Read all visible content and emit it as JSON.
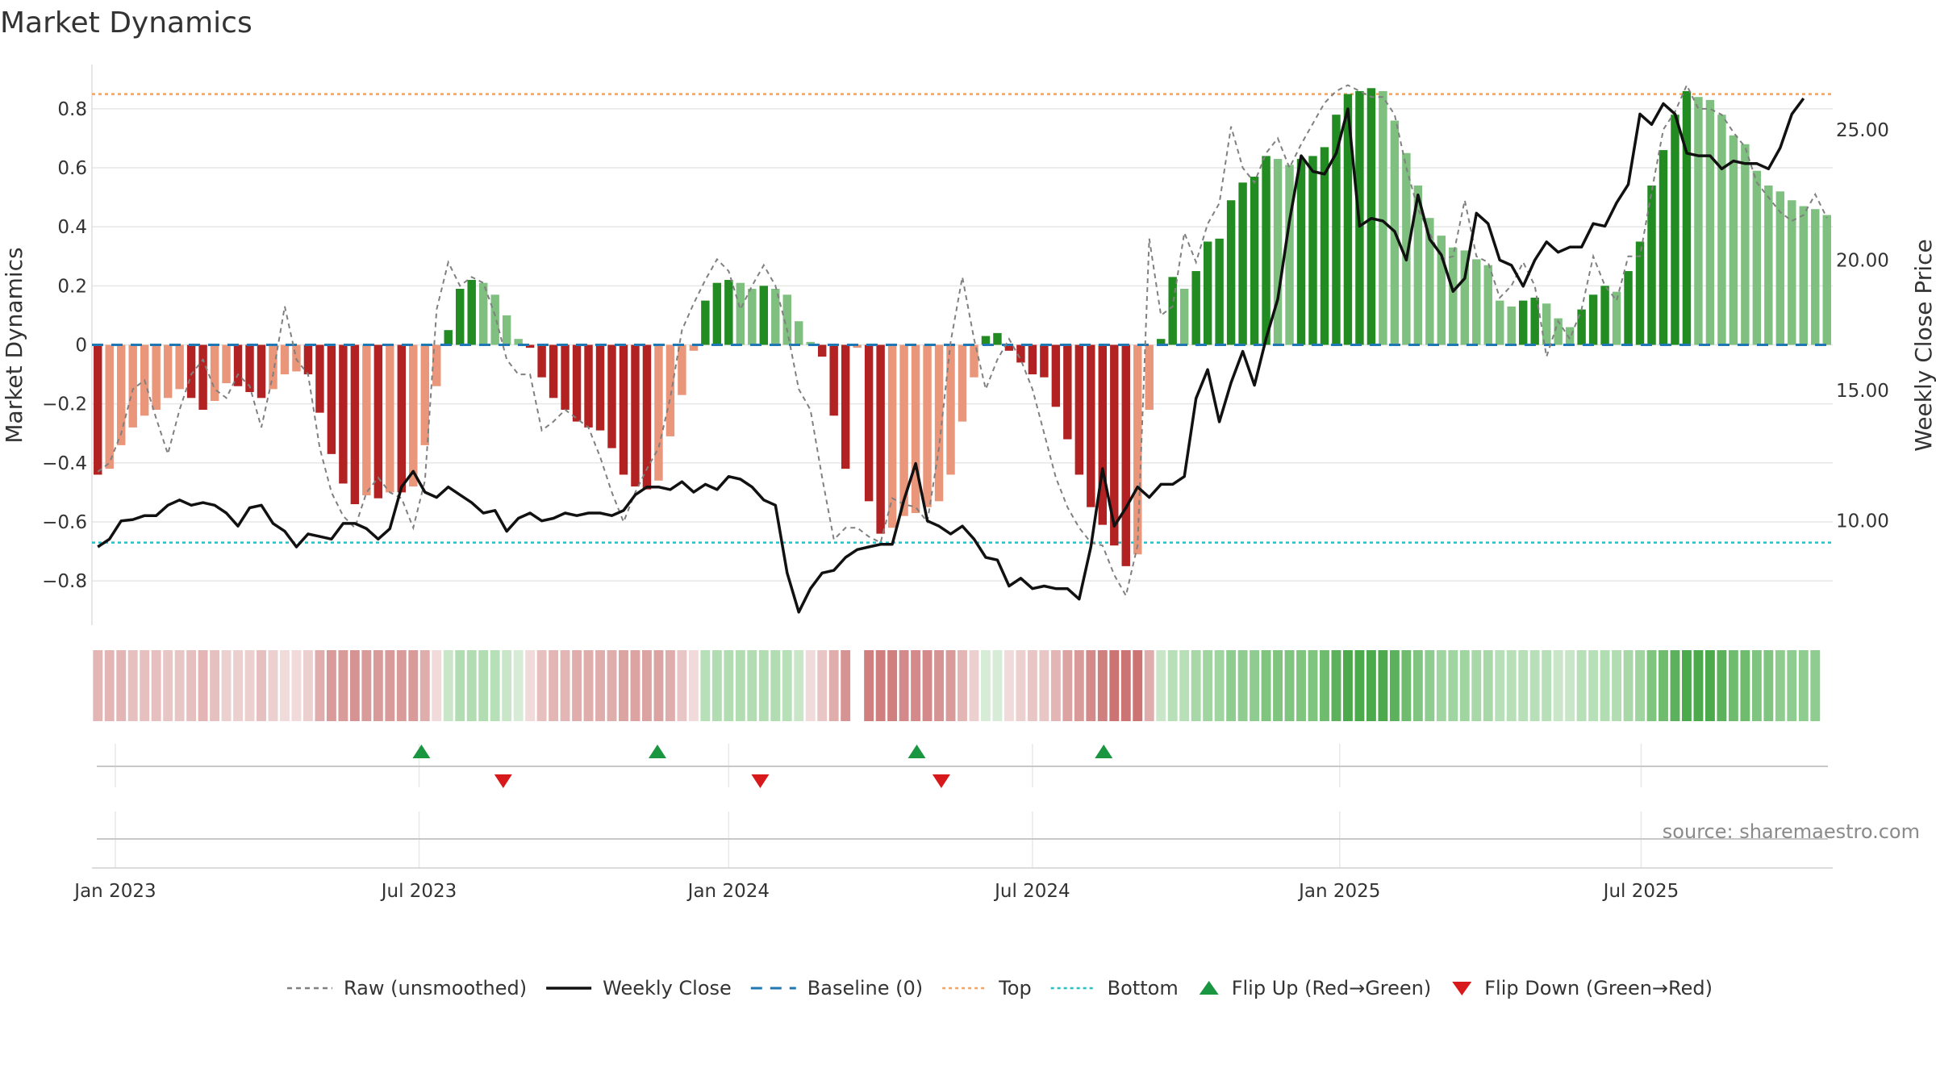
{
  "chart_data": {
    "type": "bar",
    "title": "Market Dynamics",
    "ylabel": "Market Dynamics",
    "ylabel_right": "Weekly Close Price",
    "ylim": [
      -0.95,
      0.95
    ],
    "ylim_right": [
      6.0,
      27.5
    ],
    "yticks": [
      -0.8,
      -0.6,
      -0.4,
      -0.2,
      0,
      0.2,
      0.4,
      0.6,
      0.8
    ],
    "yticks_labels": [
      "−0.8",
      "−0.6",
      "−0.4",
      "−0.2",
      "0",
      "0.2",
      "0.4",
      "0.6",
      "0.8"
    ],
    "yticks_right": [
      10,
      15,
      20,
      25
    ],
    "yticks_right_labels": [
      "10.00",
      "15.00",
      "20.00",
      "25.00"
    ],
    "x_ticks": [
      {
        "label": "Jan 2023",
        "week": 2
      },
      {
        "label": "Jul 2023",
        "week": 28
      },
      {
        "label": "Jan 2024",
        "week": 54.5
      },
      {
        "label": "Jul 2024",
        "week": 80.5
      },
      {
        "label": "Jan 2025",
        "week": 106.8
      },
      {
        "label": "Jul 2025",
        "week": 132.6
      }
    ],
    "top_level": 0.85,
    "bottom_level": -0.67,
    "baseline": 0,
    "bar_values": [
      -0.44,
      -0.42,
      -0.34,
      -0.28,
      -0.24,
      -0.22,
      -0.18,
      -0.15,
      -0.18,
      -0.22,
      -0.19,
      -0.13,
      -0.14,
      -0.16,
      -0.18,
      -0.15,
      -0.1,
      -0.09,
      -0.1,
      -0.23,
      -0.37,
      -0.47,
      -0.54,
      -0.51,
      -0.52,
      -0.5,
      -0.5,
      -0.48,
      -0.34,
      -0.14,
      0.05,
      0.19,
      0.22,
      0.21,
      0.17,
      0.1,
      0.02,
      -0.01,
      -0.11,
      -0.18,
      -0.22,
      -0.26,
      -0.28,
      -0.29,
      -0.35,
      -0.44,
      -0.48,
      -0.49,
      -0.46,
      -0.31,
      -0.17,
      -0.02,
      0.15,
      0.21,
      0.22,
      0.21,
      0.19,
      0.2,
      0.19,
      0.17,
      0.08,
      0.01,
      -0.04,
      -0.24,
      -0.42,
      -0.01,
      -0.53,
      -0.64,
      -0.62,
      -0.58,
      -0.57,
      -0.55,
      -0.53,
      -0.44,
      -0.26,
      -0.11,
      0.03,
      0.04,
      -0.02,
      -0.06,
      -0.1,
      -0.11,
      -0.21,
      -0.32,
      -0.44,
      -0.55,
      -0.61,
      -0.68,
      -0.75,
      -0.71,
      -0.22,
      0.02,
      0.23,
      0.19,
      0.25,
      0.35,
      0.36,
      0.49,
      0.55,
      0.57,
      0.64,
      0.63,
      0.61,
      0.63,
      0.64,
      0.67,
      0.78,
      0.85,
      0.86,
      0.87,
      0.86,
      0.76,
      0.65,
      0.54,
      0.43,
      0.37,
      0.33,
      0.32,
      0.29,
      0.27,
      0.15,
      0.13,
      0.15,
      0.16,
      0.14,
      0.09,
      0.06,
      0.12,
      0.17,
      0.2,
      0.18,
      0.25,
      0.35,
      0.54,
      0.66,
      0.78,
      0.86,
      0.84,
      0.83,
      0.78,
      0.71,
      0.68,
      0.59,
      0.54,
      0.52,
      0.49,
      0.47,
      0.46,
      0.44
    ],
    "raw_values": [
      -0.43,
      -0.4,
      -0.3,
      -0.15,
      -0.12,
      -0.25,
      -0.37,
      -0.22,
      -0.1,
      -0.05,
      -0.15,
      -0.18,
      -0.1,
      -0.14,
      -0.28,
      -0.1,
      0.13,
      -0.05,
      -0.1,
      -0.35,
      -0.5,
      -0.58,
      -0.62,
      -0.5,
      -0.45,
      -0.5,
      -0.52,
      -0.62,
      -0.46,
      0.12,
      0.28,
      0.2,
      0.23,
      0.21,
      0.1,
      -0.05,
      -0.1,
      -0.1,
      -0.29,
      -0.26,
      -0.22,
      -0.25,
      -0.28,
      -0.38,
      -0.5,
      -0.6,
      -0.5,
      -0.42,
      -0.35,
      -0.18,
      0.05,
      0.14,
      0.22,
      0.29,
      0.25,
      0.12,
      0.2,
      0.27,
      0.2,
      0.05,
      -0.15,
      -0.22,
      -0.45,
      -0.66,
      -0.62,
      -0.62,
      -0.65,
      -0.67,
      -0.52,
      -0.54,
      -0.55,
      -0.6,
      -0.35,
      0.01,
      0.23,
      0.02,
      -0.15,
      -0.05,
      0.02,
      -0.05,
      -0.15,
      -0.3,
      -0.45,
      -0.55,
      -0.62,
      -0.67,
      -0.68,
      -0.78,
      -0.85,
      -0.68,
      0.36,
      0.1,
      0.13,
      0.38,
      0.28,
      0.41,
      0.48,
      0.74,
      0.6,
      0.55,
      0.65,
      0.7,
      0.6,
      0.68,
      0.75,
      0.82,
      0.86,
      0.88,
      0.86,
      0.84,
      0.84,
      0.78,
      0.6,
      0.46,
      0.38,
      0.29,
      0.3,
      0.49,
      0.3,
      0.28,
      0.16,
      0.2,
      0.28,
      0.2,
      -0.04,
      0.08,
      0.02,
      0.12,
      0.3,
      0.2,
      0.15,
      0.3,
      0.3,
      0.52,
      0.73,
      0.79,
      0.88,
      0.8,
      0.8,
      0.78,
      0.72,
      0.67,
      0.55,
      0.5,
      0.45,
      0.42,
      0.44,
      0.51,
      0.43
    ],
    "close_values": [
      9.0,
      9.3,
      10.0,
      10.05,
      10.2,
      10.2,
      10.6,
      10.8,
      10.6,
      10.7,
      10.6,
      10.3,
      9.8,
      10.5,
      10.6,
      9.9,
      9.6,
      9.0,
      9.5,
      9.4,
      9.3,
      9.9,
      9.9,
      9.7,
      9.3,
      9.7,
      11.3,
      11.9,
      11.1,
      10.9,
      11.3,
      11.0,
      10.7,
      10.3,
      10.4,
      9.6,
      10.1,
      10.3,
      10.0,
      10.1,
      10.3,
      10.2,
      10.3,
      10.3,
      10.2,
      10.4,
      11.0,
      11.3,
      11.3,
      11.2,
      11.5,
      11.1,
      11.4,
      11.2,
      11.7,
      11.6,
      11.3,
      10.8,
      10.6,
      8.0,
      6.5,
      7.4,
      8.0,
      8.1,
      8.6,
      8.9,
      9.0,
      9.1,
      9.1,
      10.8,
      12.2,
      10.0,
      9.8,
      9.5,
      9.8,
      9.3,
      8.6,
      8.5,
      7.5,
      7.8,
      7.4,
      7.5,
      7.4,
      7.4,
      7.0,
      9.0,
      12.0,
      9.8,
      10.5,
      11.3,
      10.9,
      11.4,
      11.4,
      11.7,
      14.7,
      15.8,
      13.8,
      15.3,
      16.5,
      15.2,
      17.0,
      18.5,
      21.5,
      24.0,
      23.4,
      23.3,
      24.1,
      25.8,
      21.3,
      21.6,
      21.5,
      21.1,
      20.0,
      22.5,
      20.8,
      20.2,
      18.8,
      19.3,
      21.8,
      21.4,
      20.0,
      19.8,
      19.0,
      20.0,
      20.7,
      20.3,
      20.5,
      20.5,
      21.4,
      21.3,
      22.2,
      22.9,
      25.6,
      25.2,
      26.0,
      25.6,
      24.1,
      24.0,
      24.0,
      23.5,
      23.8,
      23.7,
      23.7,
      23.5,
      24.3,
      25.6,
      26.2
    ],
    "zone_colors": [
      "#e3b5b5",
      "#e3b5b5",
      "#e3b5b5",
      "#e6bfbf",
      "#e6bfbf",
      "#e6bfbf",
      "#e8c6c6",
      "#e8c6c6",
      "#e6bfbf",
      "#e3b5b5",
      "#e6bfbf",
      "#ecd0d0",
      "#ecd0d0",
      "#ecd0d0",
      "#e6bfbf",
      "#ecd0d0",
      "#f0dada",
      "#f0dada",
      "#ecd0d0",
      "#e0adad",
      "#d99a9a",
      "#d99a9a",
      "#d69393",
      "#d99a9a",
      "#d99a9a",
      "#d99a9a",
      "#d99a9a",
      "#d99a9a",
      "#e0adad",
      "#f0dada",
      "#c9e6c9",
      "#b2dcb2",
      "#b2dcb2",
      "#b2dcb2",
      "#b8e0b8",
      "#c9e6c9",
      "#d6ecd6",
      "#f0dada",
      "#e6bfbf",
      "#e3b5b5",
      "#e3b5b5",
      "#e0adad",
      "#e0adad",
      "#e0adad",
      "#e0adad",
      "#dca3a3",
      "#dca3a3",
      "#dca3a3",
      "#dca3a3",
      "#e0adad",
      "#e8c6c6",
      "#f0dada",
      "#b8e0b8",
      "#b2dcb2",
      "#b2dcb2",
      "#b2dcb2",
      "#b2dcb2",
      "#b2dcb2",
      "#b2dcb2",
      "#b8e0b8",
      "#c9e6c9",
      "#f0dada",
      "#e8c6c6",
      "#e0adad",
      "#d69393",
      "#ffffff",
      "#d07f7f",
      "#d07f7f",
      "#d07f7f",
      "#d48a8a",
      "#d48a8a",
      "#d48a8a",
      "#d69393",
      "#d99a9a",
      "#e3b5b5",
      "#ecd0d0",
      "#d6ecd6",
      "#d6ecd6",
      "#f0dada",
      "#ecd0d0",
      "#e8c6c6",
      "#e8c6c6",
      "#e3b5b5",
      "#dca3a3",
      "#d99a9a",
      "#d48a8a",
      "#d07f7f",
      "#cc7373",
      "#cc7373",
      "#cc7373",
      "#e0adad",
      "#c9e6c9",
      "#b8e0b8",
      "#b8e0b8",
      "#a8d8a8",
      "#a0d4a0",
      "#a0d4a0",
      "#8fcc8f",
      "#8fcc8f",
      "#8fcc8f",
      "#7fc47f",
      "#7fc47f",
      "#7fc47f",
      "#7fc47f",
      "#7fc47f",
      "#6fbc6f",
      "#5cb25c",
      "#4caa4c",
      "#4caa4c",
      "#4caa4c",
      "#4caa4c",
      "#5cb25c",
      "#6fbc6f",
      "#7fc47f",
      "#8fcc8f",
      "#a0d4a0",
      "#a0d4a0",
      "#a0d4a0",
      "#a8d8a8",
      "#a8d8a8",
      "#b8e0b8",
      "#b8e0b8",
      "#b8e0b8",
      "#b8e0b8",
      "#b8e0b8",
      "#c9e6c9",
      "#c9e6c9",
      "#b8e0b8",
      "#b8e0b8",
      "#b2dcb2",
      "#b2dcb2",
      "#a8d8a8",
      "#a0d4a0",
      "#7fc47f",
      "#6fbc6f",
      "#5cb25c",
      "#4caa4c",
      "#4caa4c",
      "#4caa4c",
      "#5cb25c",
      "#6fbc6f",
      "#6fbc6f",
      "#7fc47f",
      "#7fc47f",
      "#8fcc8f",
      "#8fcc8f",
      "#8fcc8f",
      "#8fcc8f"
    ],
    "flips_up_weeks": [
      28.2,
      48.4,
      70.6,
      86.6
    ],
    "flips_down_weeks": [
      35.2,
      57.2,
      72.7
    ],
    "colors": {
      "red_dark": "#b22222",
      "red_light": "#e9967a",
      "green_dark": "#228b22",
      "green_light": "#7fbf7f",
      "raw": "#808080",
      "close": "#111111",
      "baseline": "#1f77b4",
      "top": "#f4a460",
      "bottom": "#20c1c8",
      "flip_up": "#1a9641",
      "flip_down": "#d7191c",
      "grid": "#e6e6e6"
    },
    "legend": [
      {
        "key": "raw",
        "label": "Raw (unsmoothed)"
      },
      {
        "key": "close",
        "label": "Weekly Close"
      },
      {
        "key": "baseline",
        "label": "Baseline (0)"
      },
      {
        "key": "top",
        "label": "Top"
      },
      {
        "key": "bottom",
        "label": "Bottom"
      },
      {
        "key": "flip_up",
        "label": "Flip Up (Red→Green)"
      },
      {
        "key": "flip_down",
        "label": "Flip Down (Green→Red)"
      }
    ],
    "source": "source: sharemaestro.com"
  }
}
